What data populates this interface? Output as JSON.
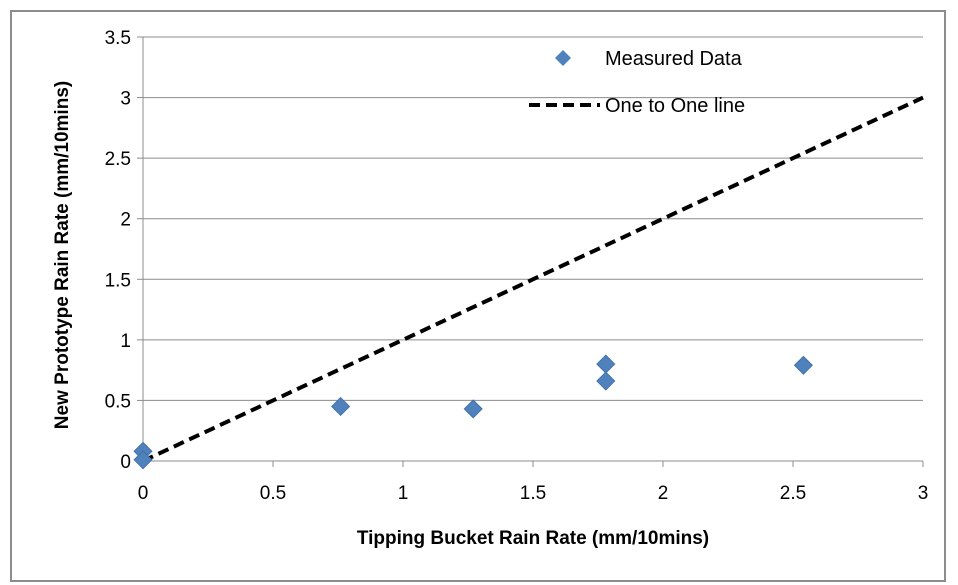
{
  "chart_data": {
    "type": "scatter",
    "xlabel": "Tipping Bucket Rain Rate (mm/10mins)",
    "ylabel": "New Prototype Rain Rate (mm/10mins)",
    "xlim": [
      0,
      3
    ],
    "ylim": [
      0,
      3.5
    ],
    "xticks": [
      "0",
      "0.5",
      "1",
      "1.5",
      "2",
      "2.5",
      "3"
    ],
    "yticks": [
      "0",
      "0.5",
      "1",
      "1.5",
      "2",
      "2.5",
      "3",
      "3.5"
    ],
    "grid": "horizontal",
    "legend_position": "top-right",
    "series": [
      {
        "name": "Measured Data",
        "marker": "diamond",
        "color": "#4f81bd",
        "x": [
          0,
          0,
          0.76,
          1.27,
          1.78,
          1.78,
          2.54
        ],
        "y": [
          0.08,
          0.01,
          0.45,
          0.43,
          0.8,
          0.66,
          0.79
        ]
      },
      {
        "name": "One to One line",
        "style": "dashed",
        "color": "#000000",
        "x": [
          0,
          3
        ],
        "y": [
          0,
          3
        ]
      }
    ]
  }
}
